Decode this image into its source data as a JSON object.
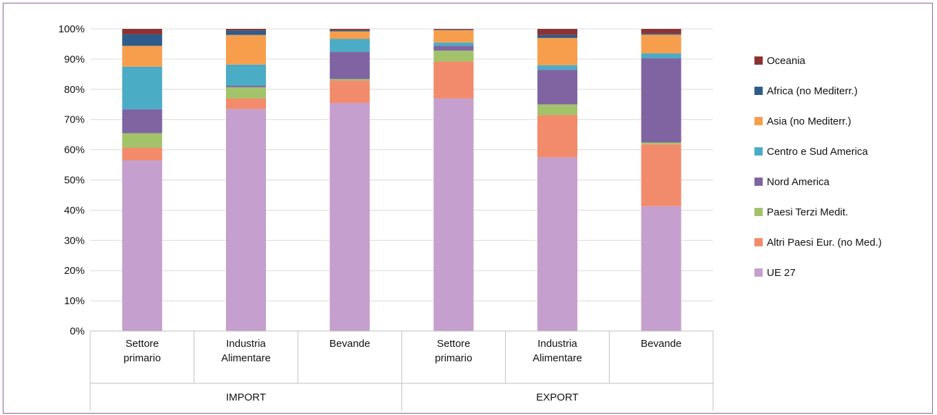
{
  "chart_data": {
    "type": "bar",
    "stacked": true,
    "normalized": true,
    "title": "",
    "xlabel": "",
    "ylabel": "",
    "ylim": [
      0,
      100
    ],
    "y_ticks": [
      "0%",
      "10%",
      "20%",
      "30%",
      "40%",
      "50%",
      "60%",
      "70%",
      "80%",
      "90%",
      "100%"
    ],
    "grid": true,
    "legend_position": "right",
    "groups": [
      {
        "label": "IMPORT",
        "categories": [
          0,
          1,
          2
        ]
      },
      {
        "label": "EXPORT",
        "categories": [
          3,
          4,
          5
        ]
      }
    ],
    "categories": [
      [
        "Settore",
        "primario"
      ],
      [
        "Industria",
        "Alimentare"
      ],
      [
        "Bevande"
      ],
      [
        "Settore",
        "primario"
      ],
      [
        "Industria",
        "Alimentare"
      ],
      [
        "Bevande"
      ]
    ],
    "series": [
      {
        "name": "UE 27",
        "color": "#c59fcd",
        "values": [
          56.5,
          73.5,
          75.5,
          77.0,
          57.5,
          41.3
        ]
      },
      {
        "name": "Altri Paesi Eur. (no Med.)",
        "color": "#f28b6b",
        "values": [
          4.2,
          3.5,
          7.4,
          12.2,
          14.0,
          20.5
        ]
      },
      {
        "name": "Paesi Terzi  Medit.",
        "color": "#a2c36a",
        "values": [
          4.8,
          3.7,
          0.5,
          3.6,
          3.5,
          0.6
        ]
      },
      {
        "name": "Nord America",
        "color": "#8064a2",
        "values": [
          7.9,
          0.5,
          9.0,
          1.6,
          11.5,
          27.9
        ]
      },
      {
        "name": "Centro e Sud America",
        "color": "#4bacc6",
        "values": [
          14.1,
          7.0,
          4.3,
          1.1,
          1.5,
          1.6
        ]
      },
      {
        "name": "Asia (no Mediterr.)",
        "color": "#f79e4d",
        "values": [
          6.9,
          9.8,
          2.5,
          4.1,
          9.0,
          6.2
        ]
      },
      {
        "name": "Africa (no Mediterr.)",
        "color": "#2e5c8a",
        "values": [
          3.8,
          1.5,
          0.4,
          0.2,
          1.0,
          0.4
        ]
      },
      {
        "name": "Oceania",
        "color": "#8b3232",
        "values": [
          1.8,
          0.5,
          0.4,
          0.2,
          2.0,
          1.5
        ]
      }
    ]
  }
}
